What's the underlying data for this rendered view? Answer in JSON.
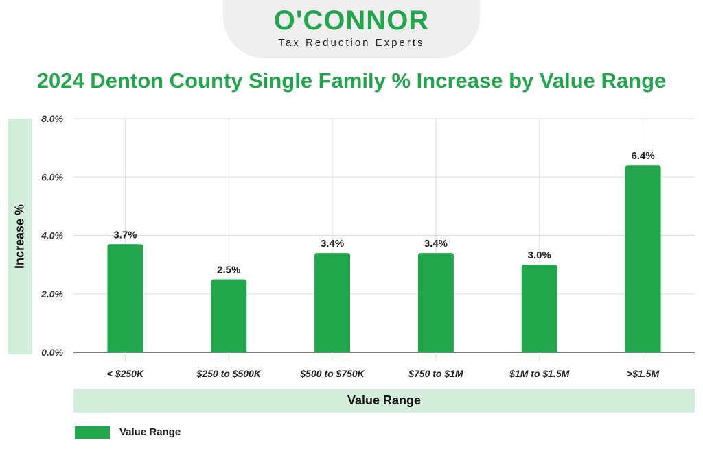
{
  "logo": {
    "name": "O'CONNOR",
    "tagline": "Tax Reduction Experts"
  },
  "colors": {
    "bar": "#22a64c",
    "title": "#22a64c",
    "band": "#d3eedb",
    "grid": "#dddddd"
  },
  "chart_data": {
    "type": "bar",
    "title": "2024 Denton County Single Family % Increase by Value Range",
    "xlabel": "Value Range",
    "ylabel": "Increase %",
    "categories": [
      "< $250K",
      "$250 to $500K",
      "$500 to $750K",
      "$750 to $1M",
      "$1M to $1.5M",
      ">$1.5M"
    ],
    "series": [
      {
        "name": "Value Range",
        "values": [
          3.7,
          2.5,
          3.4,
          3.4,
          3.0,
          6.4
        ]
      }
    ],
    "data_labels": [
      "3.7%",
      "2.5%",
      "3.4%",
      "3.4%",
      "3.0%",
      "6.4%"
    ],
    "ylim": [
      0,
      8
    ],
    "yticks": [
      0,
      2,
      4,
      6,
      8
    ],
    "ytick_labels": [
      "0.0%",
      "2.0%",
      "4.0%",
      "6.0%",
      "8.0%"
    ],
    "grid": true,
    "legend": "bottom-left"
  }
}
